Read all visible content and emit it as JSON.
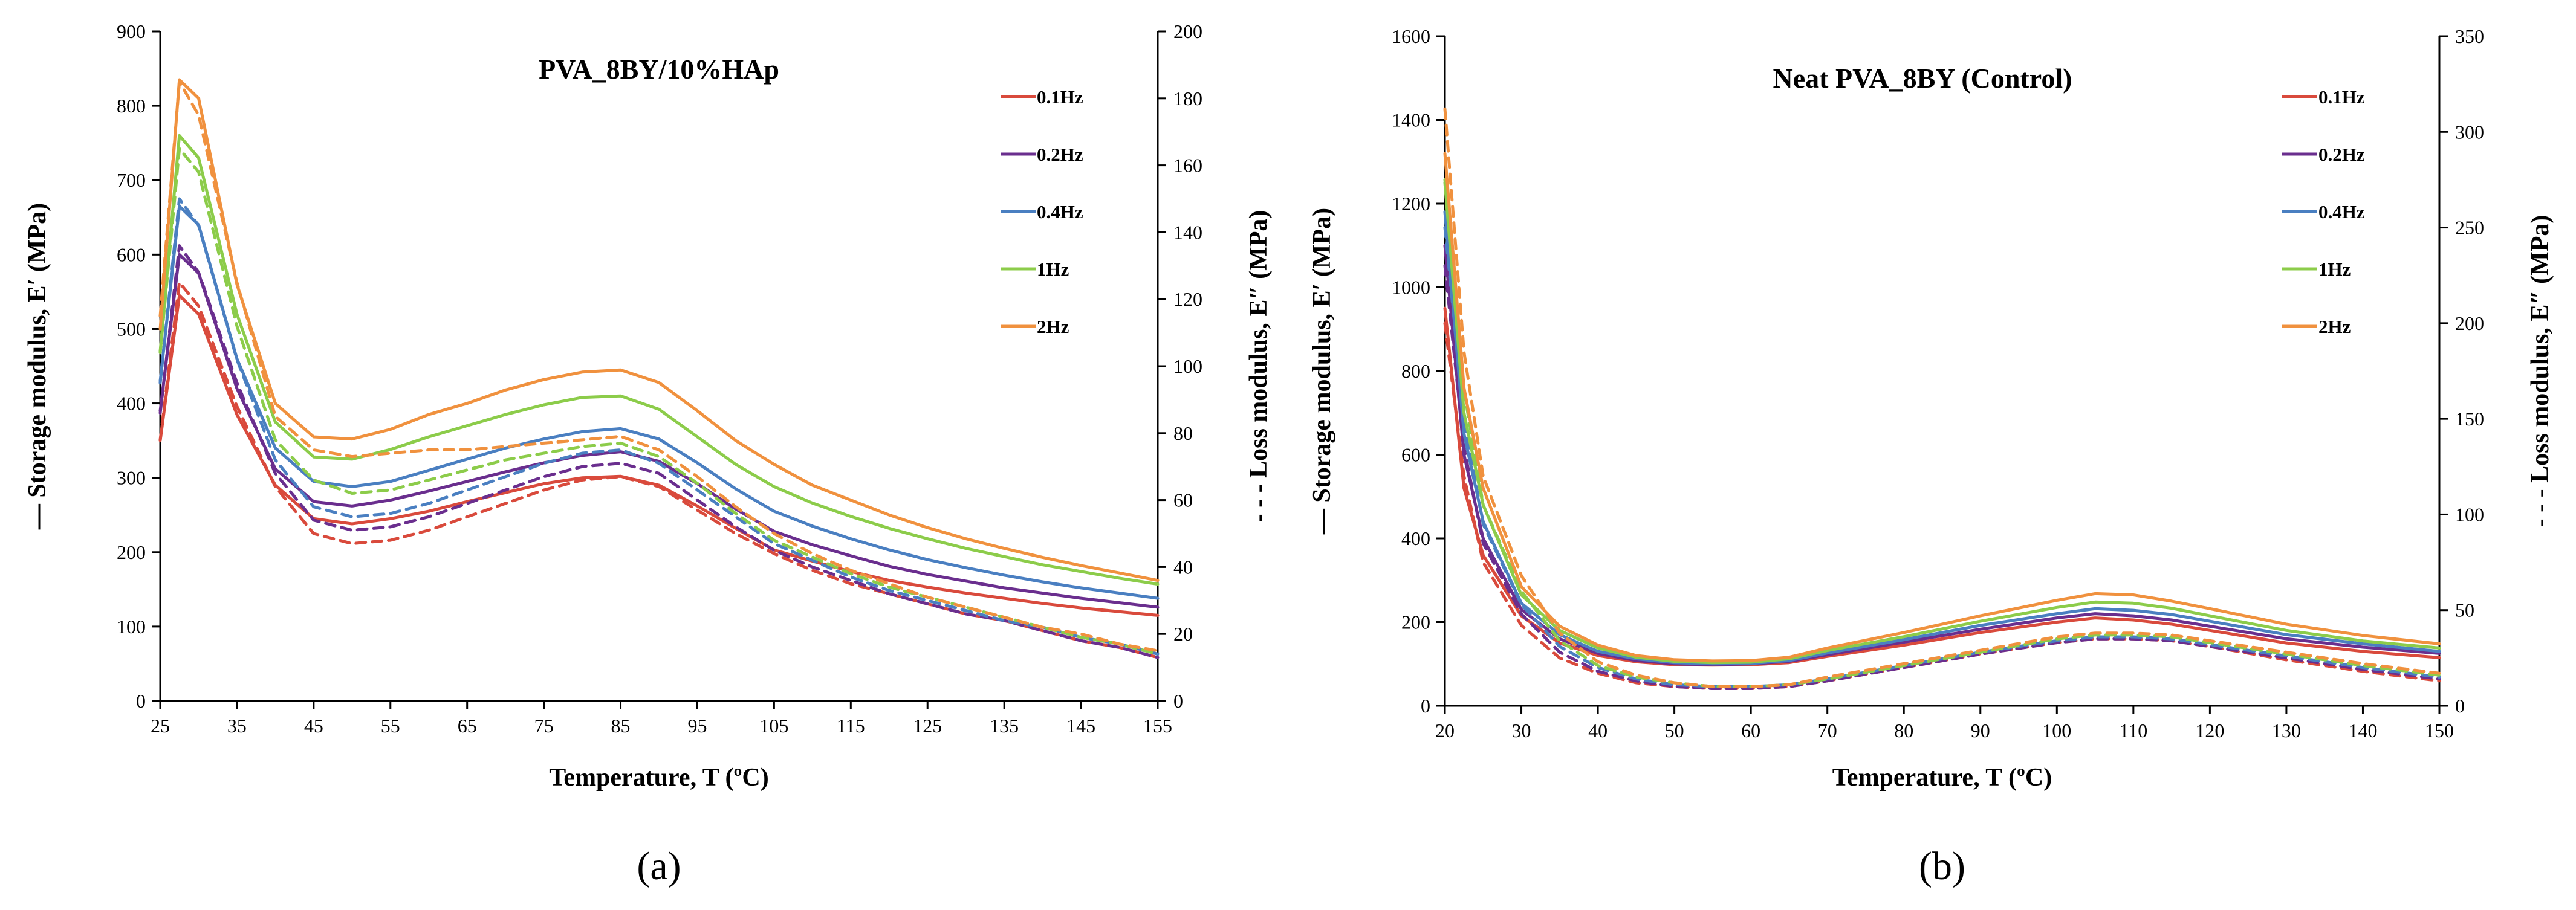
{
  "chart_data": [
    {
      "type": "line",
      "title": "PVA_8BY/10%HAp",
      "caption": "(a)",
      "xlabel": "Temperature, T (ºC)",
      "ylabel_left": "Storage modulus, E′ (MPa)",
      "ylabel_right": "Loss modulus, E″ (MPa)",
      "left_legend_marker": "—",
      "right_legend_marker": "- - -",
      "xlim": [
        25,
        155
      ],
      "ylim_left": [
        0,
        900
      ],
      "ylim_right": [
        0,
        200
      ],
      "xticks": [
        25,
        35,
        45,
        55,
        65,
        75,
        85,
        95,
        105,
        115,
        125,
        135,
        145,
        155
      ],
      "yticks_left": [
        0,
        100,
        200,
        300,
        400,
        500,
        600,
        700,
        800,
        900
      ],
      "yticks_right": [
        0,
        20,
        40,
        60,
        80,
        100,
        120,
        140,
        160,
        180,
        200
      ],
      "legend_position": "top-right",
      "x": [
        25,
        27.5,
        30,
        35,
        40,
        45,
        50,
        55,
        60,
        65,
        70,
        75,
        80,
        85,
        90,
        95,
        100,
        105,
        110,
        115,
        120,
        125,
        130,
        135,
        140,
        145,
        150,
        155
      ],
      "series": [
        {
          "name": "0.1Hz",
          "color": "#d94a3c",
          "storage": [
            350,
            545,
            520,
            385,
            290,
            245,
            238,
            245,
            255,
            268,
            280,
            292,
            300,
            302,
            290,
            262,
            232,
            203,
            188,
            174,
            162,
            153,
            145,
            138,
            131,
            125,
            120,
            115
          ],
          "loss": [
            78,
            125,
            118,
            88,
            64,
            50,
            47,
            48,
            51,
            55,
            59,
            63,
            66,
            67,
            64,
            57,
            50,
            44,
            39,
            35,
            32,
            29,
            26,
            24,
            21,
            18,
            16,
            13
          ]
        },
        {
          "name": "0.2Hz",
          "color": "#6a2e8e",
          "storage": [
            390,
            600,
            575,
            420,
            312,
            268,
            262,
            270,
            282,
            295,
            308,
            320,
            330,
            335,
            322,
            292,
            258,
            228,
            210,
            195,
            181,
            170,
            161,
            152,
            145,
            138,
            132,
            126
          ],
          "loss": [
            86,
            136,
            128,
            95,
            68,
            54,
            51,
            52,
            55,
            59,
            63,
            67,
            70,
            71,
            68,
            60,
            52,
            45,
            40,
            36,
            32,
            29,
            26,
            24,
            21,
            18,
            16,
            13
          ]
        },
        {
          "name": "0.4Hz",
          "color": "#4a7fc1",
          "storage": [
            430,
            665,
            640,
            460,
            340,
            295,
            288,
            295,
            310,
            325,
            340,
            352,
            362,
            366,
            352,
            320,
            285,
            255,
            235,
            218,
            203,
            190,
            179,
            169,
            160,
            152,
            145,
            138
          ],
          "loss": [
            95,
            150,
            142,
            102,
            72,
            58,
            55,
            56,
            59,
            63,
            67,
            71,
            74,
            75,
            71,
            63,
            55,
            47,
            42,
            37,
            33,
            30,
            27,
            24,
            22,
            19,
            17,
            14
          ]
        },
        {
          "name": "1Hz",
          "color": "#8ccc4a",
          "storage": [
            470,
            760,
            730,
            520,
            375,
            328,
            325,
            338,
            355,
            370,
            385,
            398,
            408,
            410,
            392,
            355,
            318,
            288,
            266,
            248,
            232,
            218,
            205,
            194,
            183,
            174,
            165,
            157
          ],
          "loss": [
            104,
            165,
            158,
            112,
            78,
            66,
            62,
            63,
            66,
            69,
            72,
            74,
            76,
            77,
            73,
            65,
            56,
            48,
            43,
            38,
            34,
            31,
            28,
            25,
            22,
            19,
            17,
            14
          ]
        },
        {
          "name": "2Hz",
          "color": "#f0913e",
          "storage": [
            500,
            835,
            810,
            560,
            400,
            355,
            352,
            365,
            385,
            400,
            418,
            432,
            442,
            445,
            428,
            390,
            350,
            318,
            290,
            270,
            250,
            233,
            218,
            205,
            193,
            182,
            172,
            162
          ],
          "loss": [
            115,
            185,
            175,
            125,
            85,
            75,
            73,
            74,
            75,
            75,
            76,
            77,
            78,
            79,
            75,
            67,
            58,
            50,
            44,
            39,
            35,
            31,
            28,
            25,
            22,
            20,
            17,
            15
          ]
        }
      ]
    },
    {
      "type": "line",
      "title": "Neat PVA_8BY (Control)",
      "caption": "(b)",
      "xlabel": "Temperature, T (ºC)",
      "ylabel_left": "Storage modulus, E′ (MPa)",
      "ylabel_right": "Loss modulus, E″ (MPa)",
      "left_legend_marker": "—",
      "right_legend_marker": "- - -",
      "xlim": [
        20,
        150
      ],
      "ylim_left": [
        0,
        1600
      ],
      "ylim_right": [
        0,
        350
      ],
      "xticks": [
        20,
        30,
        40,
        50,
        60,
        70,
        80,
        90,
        100,
        110,
        120,
        130,
        140,
        150
      ],
      "yticks_left": [
        0,
        200,
        400,
        600,
        800,
        1000,
        1200,
        1400,
        1600
      ],
      "yticks_right": [
        0,
        50,
        100,
        150,
        200,
        250,
        300,
        350
      ],
      "legend_position": "top-right",
      "x": [
        20,
        22.5,
        25,
        30,
        35,
        40,
        45,
        50,
        55,
        60,
        65,
        70,
        80,
        90,
        100,
        105,
        110,
        115,
        120,
        130,
        140,
        150
      ],
      "series": [
        {
          "name": "0.1Hz",
          "color": "#d94a3c",
          "storage": [
            950,
            520,
            360,
            215,
            150,
            120,
            105,
            98,
            97,
            98,
            103,
            118,
            145,
            175,
            200,
            210,
            205,
            195,
            180,
            150,
            130,
            115
          ],
          "loss": [
            200,
            120,
            75,
            42,
            25,
            17,
            12,
            10,
            9,
            9,
            10,
            13,
            20,
            27,
            33,
            35,
            35,
            34,
            31,
            24,
            18,
            13
          ]
        },
        {
          "name": "0.2Hz",
          "color": "#6a2e8e",
          "storage": [
            1100,
            600,
            400,
            230,
            160,
            125,
            108,
            100,
            98,
            100,
            106,
            122,
            152,
            183,
            210,
            220,
            215,
            205,
            190,
            160,
            140,
            125
          ],
          "loss": [
            230,
            135,
            85,
            48,
            28,
            18,
            13,
            10,
            9,
            9,
            10,
            13,
            20,
            27,
            33,
            35,
            35,
            34,
            31,
            25,
            19,
            14
          ]
        },
        {
          "name": "0.4Hz",
          "color": "#4a7fc1",
          "storage": [
            1180,
            650,
            440,
            245,
            170,
            130,
            112,
            103,
            100,
            101,
            108,
            126,
            158,
            192,
            220,
            232,
            228,
            218,
            202,
            170,
            148,
            130
          ],
          "loss": [
            250,
            150,
            95,
            53,
            31,
            20,
            14,
            11,
            10,
            10,
            11,
            14,
            21,
            28,
            34,
            36,
            36,
            35,
            32,
            26,
            20,
            15
          ]
        },
        {
          "name": "1Hz",
          "color": "#8ccc4a",
          "storage": [
            1250,
            700,
            480,
            265,
            180,
            138,
            116,
            106,
            103,
            104,
            112,
            132,
            165,
            202,
            235,
            248,
            245,
            233,
            215,
            180,
            155,
            138
          ],
          "loss": [
            275,
            165,
            105,
            60,
            34,
            21,
            15,
            12,
            10,
            10,
            11,
            14,
            21,
            28,
            35,
            37,
            37,
            36,
            33,
            27,
            21,
            16
          ]
        },
        {
          "name": "2Hz",
          "color": "#f0913e",
          "storage": [
            1320,
            760,
            520,
            285,
            190,
            145,
            120,
            110,
            107,
            108,
            116,
            138,
            175,
            215,
            252,
            268,
            265,
            250,
            232,
            195,
            168,
            148
          ],
          "loss": [
            312,
            185,
            120,
            68,
            38,
            23,
            16,
            12,
            10,
            10,
            11,
            15,
            22,
            29,
            36,
            38,
            38,
            37,
            34,
            28,
            22,
            17
          ]
        }
      ]
    }
  ]
}
